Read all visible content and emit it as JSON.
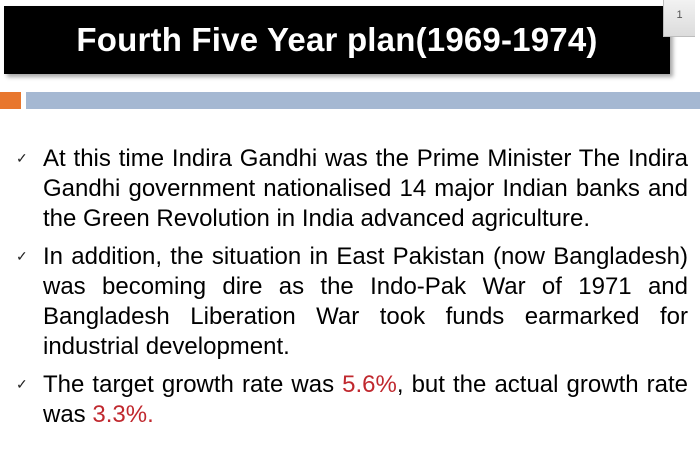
{
  "slide": {
    "title": "Fourth Five Year plan(1969-1974)",
    "page_number": "1"
  },
  "colors": {
    "title_background": "#000000",
    "accent_orange": "#e8772e",
    "accent_blue": "#a5b8d2",
    "highlight_red": "#c0282e"
  },
  "bullets": [
    {
      "text": "At this time Indira Gandhi was the Prime Minister The Indira Gandhi government nationalised 14 major Indian banks and the Green Revolution in India advanced agriculture."
    },
    {
      "text": "In addition, the situation in East Pakistan (now Bangladesh) was becoming dire as the Indo-Pak War of 1971 and Bangladesh Liberation War took funds earmarked for industrial development."
    },
    {
      "text_before": "The target growth rate was ",
      "target_rate": "5.6%",
      "text_middle": ", but the actual growth rate was ",
      "actual_rate": "3.3%."
    }
  ],
  "icons": {
    "bullet": "checkmark-icon"
  }
}
